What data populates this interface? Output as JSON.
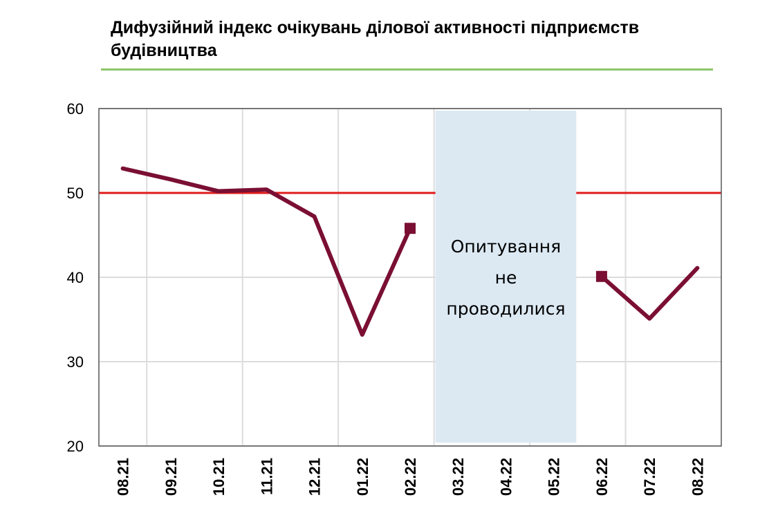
{
  "chart_data": {
    "type": "line",
    "title": "Дифузійний індекс очікувань ділової активності підприємств будівництва",
    "categories": [
      "08.21",
      "09.21",
      "10.21",
      "11.21",
      "12.21",
      "01.22",
      "02.22",
      "03.22",
      "04.22",
      "05.22",
      "06.22",
      "07.22",
      "08.22"
    ],
    "series": [
      {
        "values": [
          52.9,
          51.6,
          50.2,
          50.4,
          47.2,
          33.2,
          45.8,
          null,
          null,
          null,
          40.1,
          35.1,
          41.1
        ],
        "color": "#7a0f33"
      }
    ],
    "reference_line": {
      "value": 50,
      "color": "#e01b1b"
    },
    "ylim": [
      20,
      60
    ],
    "yticks": [
      20,
      30,
      40,
      50,
      60
    ],
    "grid": true,
    "gap_band": {
      "from": "03.22",
      "to": "05.22",
      "lines": [
        "Опитування",
        "не",
        "проводилися"
      ],
      "color": "#dce9f3"
    }
  }
}
